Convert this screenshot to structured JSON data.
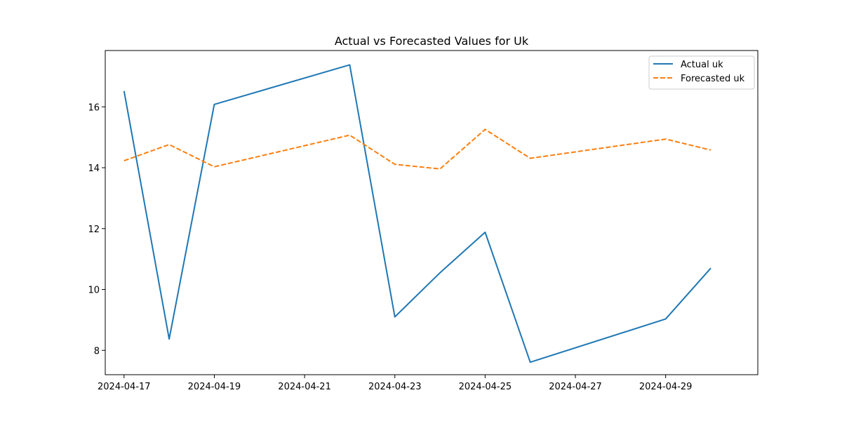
{
  "chart_data": {
    "type": "line",
    "title": "Actual vs Forecasted Values for Uk",
    "xlabel": "",
    "ylabel": "",
    "x": [
      "2024-04-17",
      "2024-04-18",
      "2024-04-19",
      "2024-04-22",
      "2024-04-23",
      "2024-04-24",
      "2024-04-25",
      "2024-04-26",
      "2024-04-29",
      "2024-04-30"
    ],
    "xlim": [
      "2024-04-16T14:00:00",
      "2024-05-01T01:00:00"
    ],
    "ylim": [
      7.2,
      17.85
    ],
    "x_ticks": [
      "2024-04-17",
      "2024-04-19",
      "2024-04-21",
      "2024-04-23",
      "2024-04-25",
      "2024-04-27",
      "2024-04-29"
    ],
    "y_ticks": [
      8,
      10,
      12,
      14,
      16
    ],
    "grid": false,
    "legend_position": "top-right",
    "series": [
      {
        "name": "Actual uk",
        "color": "#1f77b4",
        "dash": "solid",
        "values": [
          16.52,
          8.37,
          16.08,
          17.38,
          9.1,
          10.55,
          11.88,
          7.61,
          9.03,
          10.7
        ]
      },
      {
        "name": "Forecasted uk",
        "color": "#ff7f0e",
        "dash": "dashed",
        "values": [
          14.23,
          14.76,
          14.03,
          15.07,
          14.11,
          13.96,
          15.26,
          14.31,
          14.94,
          14.58
        ]
      }
    ]
  }
}
